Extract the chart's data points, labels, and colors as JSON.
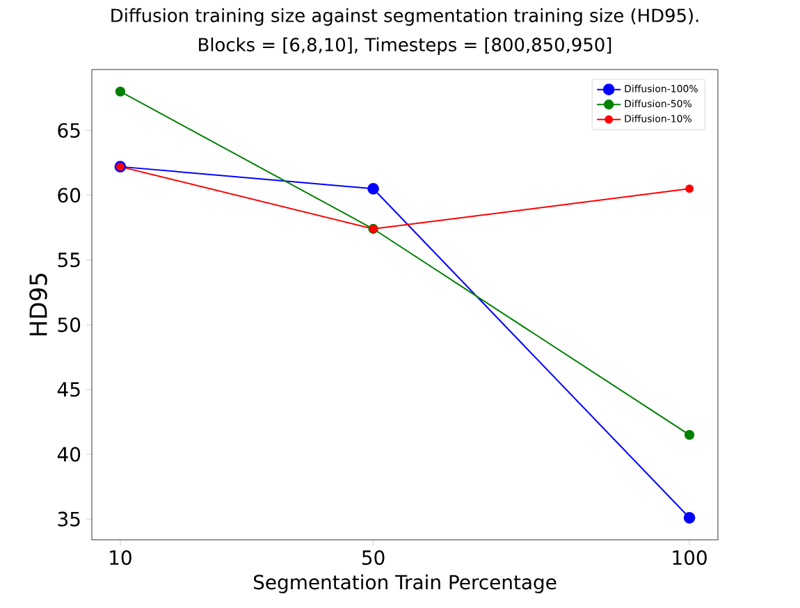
{
  "chart_data": {
    "type": "line",
    "title": "Diffusion training size against segmentation training size (HD95).",
    "subtitle": "Blocks = [6,8,10], Timesteps = [800,850,950]",
    "xlabel": "Segmentation Train Percentage",
    "ylabel": "HD95",
    "x": [
      10,
      50,
      100
    ],
    "series": [
      {
        "name": "Diffusion-100%",
        "color": "#0000ff",
        "values": [
          62.2,
          60.5,
          35.1
        ]
      },
      {
        "name": "Diffusion-50%",
        "color": "#008000",
        "values": [
          68.0,
          57.4,
          41.5
        ]
      },
      {
        "name": "Diffusion-10%",
        "color": "#ff0000",
        "values": [
          62.2,
          57.4,
          60.5
        ]
      }
    ],
    "xlim": [
      5.5,
      104.5
    ],
    "ylim": [
      33.4,
      69.7
    ],
    "xticks": [
      10,
      50,
      100
    ],
    "yticks": [
      35,
      40,
      45,
      50,
      55,
      60,
      65
    ],
    "legend": "top right",
    "marker": "circle",
    "line_style": "solid",
    "grid": false
  }
}
